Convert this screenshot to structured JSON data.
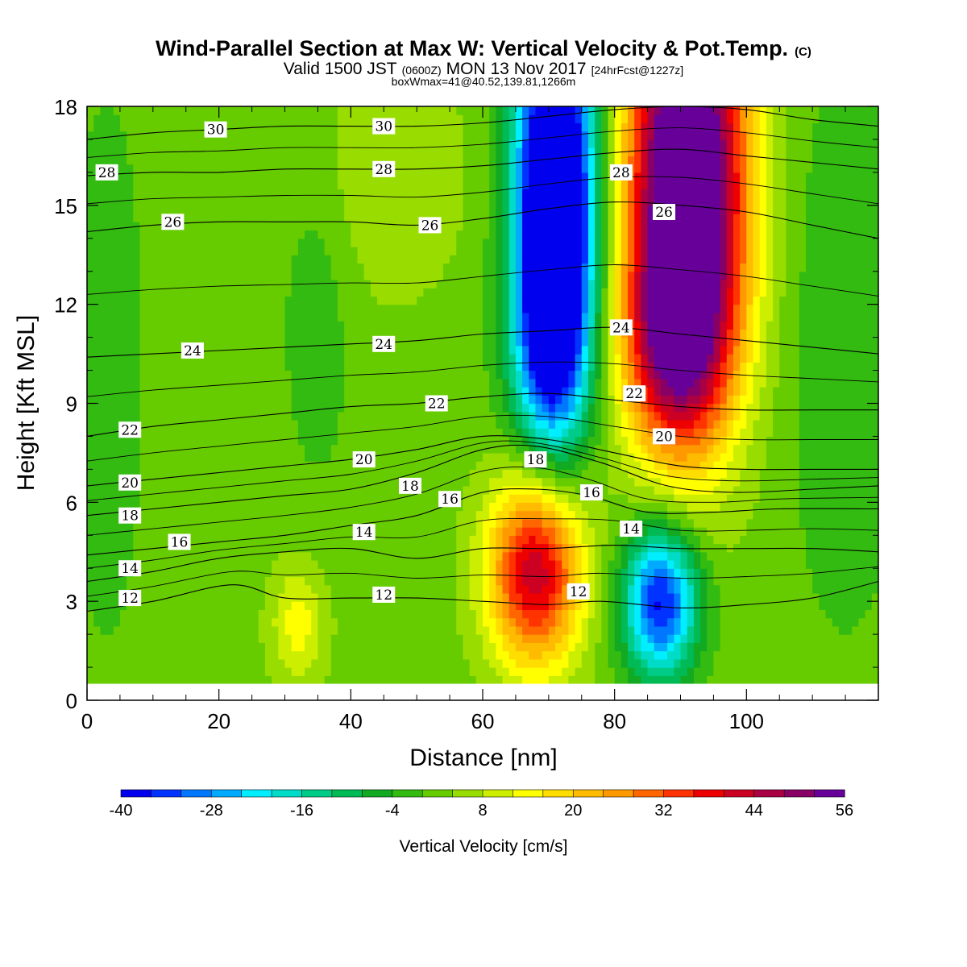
{
  "header": {
    "title": "Wind-Parallel Section at Max W: Vertical Velocity & Pot.Temp.",
    "title_mark": "(C)",
    "valid_prefix": "Valid 1500 JST",
    "valid_utc": "(0600Z)",
    "valid_date": "MON 13 Nov 2017",
    "forecast": "[24hrFcst@1227z]",
    "box_info": "boxWmax=41@40.52,139.81,1266m"
  },
  "chart_data": {
    "type": "heatmap",
    "xlabel": "Distance [nm]",
    "ylabel": "Height [Kft MSL]",
    "xlim": [
      0,
      120
    ],
    "ylim": [
      0,
      18
    ],
    "x_ticks": [
      0,
      20,
      40,
      60,
      80,
      100
    ],
    "y_ticks": [
      0,
      3,
      6,
      9,
      12,
      15,
      18
    ],
    "colorbar": {
      "label": "Vertical Velocity [cm/s]",
      "min": -40,
      "max": 60,
      "step": 4,
      "ticks": [
        -40,
        -28,
        -16,
        -4,
        8,
        20,
        32,
        44,
        56
      ],
      "colors": [
        "#0000ee",
        "#0033ff",
        "#0077ff",
        "#00aaff",
        "#00eeff",
        "#00dcc8",
        "#00cc88",
        "#00bb55",
        "#11aa22",
        "#33bb11",
        "#66cc00",
        "#99dd00",
        "#ccee00",
        "#ffff00",
        "#ffdd00",
        "#ffbb00",
        "#ff9900",
        "#ff6600",
        "#ff3300",
        "#ee0000",
        "#cc0022",
        "#aa0044",
        "#880066",
        "#660099"
      ]
    },
    "w_features": [
      {
        "name": "updraft-upper",
        "x": 91,
        "y": 15.8,
        "sx": 6.2,
        "sy": 4.8,
        "peak": 70
      },
      {
        "name": "updraft-upper-stem",
        "x": 89,
        "y": 10.8,
        "sx": 5.5,
        "sy": 2.2,
        "peak": 28
      },
      {
        "name": "downdraft-upper",
        "x": 71,
        "y": 15.0,
        "sx": 4.2,
        "sy": 4.2,
        "peak": -68
      },
      {
        "name": "downdraft-upper-stem",
        "x": 70,
        "y": 10.5,
        "sx": 3.8,
        "sy": 2.0,
        "peak": -18
      },
      {
        "name": "updraft-lower",
        "x": 68,
        "y": 3.9,
        "sx": 5.0,
        "sy": 2.0,
        "peak": 42
      },
      {
        "name": "downdraft-lower",
        "x": 87,
        "y": 3.0,
        "sx": 4.0,
        "sy": 1.6,
        "peak": -40
      },
      {
        "name": "updraft-low-left",
        "x": 32,
        "y": 2.3,
        "sx": 3.0,
        "sy": 1.3,
        "peak": 12
      },
      {
        "name": "updraft-upper-left",
        "x": 45,
        "y": 16.0,
        "sx": 9.0,
        "sy": 2.8,
        "peak": 6
      },
      {
        "name": "updraft-mid-left",
        "x": 35,
        "y": 12.5,
        "sx": 4.0,
        "sy": 4.0,
        "peak": -5
      },
      {
        "name": "weak-sink-right",
        "x": 115,
        "y": 11.0,
        "sx": 6.0,
        "sy": 6.0,
        "peak": -6
      },
      {
        "name": "weak-sink-left",
        "x": 3,
        "y": 10.0,
        "sx": 4.0,
        "sy": 6.0,
        "peak": -5
      }
    ],
    "background_w": 2,
    "theta_contours": [
      {
        "level": 12,
        "points": [
          [
            0,
            2.7
          ],
          [
            10,
            3.0
          ],
          [
            22,
            3.5
          ],
          [
            30,
            3.1
          ],
          [
            40,
            3.1
          ],
          [
            50,
            3.1
          ],
          [
            60,
            3.0
          ],
          [
            70,
            2.9
          ],
          [
            78,
            3.0
          ],
          [
            90,
            2.8
          ],
          [
            100,
            2.9
          ],
          [
            110,
            3.1
          ],
          [
            120,
            3.6
          ]
        ]
      },
      {
        "level": 14,
        "points": [
          [
            0,
            3.6
          ],
          [
            10,
            3.9
          ],
          [
            20,
            4.3
          ],
          [
            30,
            4.5
          ],
          [
            40,
            4.6
          ],
          [
            50,
            4.3
          ],
          [
            60,
            4.6
          ],
          [
            70,
            4.6
          ],
          [
            80,
            4.7
          ],
          [
            90,
            4.6
          ],
          [
            100,
            4.6
          ],
          [
            110,
            4.6
          ],
          [
            120,
            4.5
          ]
        ]
      },
      {
        "level": 16,
        "points": [
          [
            0,
            4.4
          ],
          [
            10,
            4.6
          ],
          [
            20,
            4.8
          ],
          [
            30,
            5.0
          ],
          [
            40,
            5.3
          ],
          [
            50,
            5.6
          ],
          [
            60,
            6.3
          ],
          [
            68,
            6.4
          ],
          [
            76,
            6.2
          ],
          [
            85,
            5.7
          ],
          [
            95,
            5.7
          ],
          [
            105,
            5.8
          ],
          [
            120,
            5.8
          ]
        ]
      },
      {
        "level": 18,
        "points": [
          [
            0,
            5.6
          ],
          [
            10,
            5.8
          ],
          [
            20,
            6.0
          ],
          [
            30,
            6.2
          ],
          [
            40,
            6.4
          ],
          [
            50,
            6.9
          ],
          [
            60,
            7.6
          ],
          [
            68,
            7.7
          ],
          [
            78,
            7.2
          ],
          [
            88,
            6.5
          ],
          [
            98,
            6.3
          ],
          [
            110,
            6.4
          ],
          [
            120,
            6.5
          ]
        ]
      },
      {
        "level": 20,
        "points": [
          [
            0,
            6.5
          ],
          [
            10,
            6.7
          ],
          [
            20,
            6.9
          ],
          [
            30,
            7.1
          ],
          [
            40,
            7.3
          ],
          [
            50,
            7.6
          ],
          [
            60,
            8.0
          ],
          [
            70,
            7.9
          ],
          [
            80,
            7.5
          ],
          [
            90,
            7.1
          ],
          [
            100,
            7.0
          ],
          [
            110,
            7.0
          ],
          [
            120,
            7.0
          ]
        ]
      },
      {
        "level": 22,
        "points": [
          [
            0,
            8.0
          ],
          [
            10,
            8.3
          ],
          [
            20,
            8.5
          ],
          [
            30,
            8.7
          ],
          [
            40,
            8.9
          ],
          [
            50,
            9.0
          ],
          [
            60,
            9.2
          ],
          [
            70,
            9.3
          ],
          [
            80,
            9.1
          ],
          [
            90,
            8.9
          ],
          [
            100,
            8.8
          ],
          [
            110,
            8.8
          ],
          [
            120,
            8.8
          ]
        ]
      },
      {
        "level": 24,
        "points": [
          [
            0,
            10.4
          ],
          [
            10,
            10.5
          ],
          [
            20,
            10.6
          ],
          [
            30,
            10.7
          ],
          [
            40,
            10.8
          ],
          [
            50,
            10.9
          ],
          [
            60,
            11.1
          ],
          [
            70,
            11.2
          ],
          [
            80,
            11.3
          ],
          [
            90,
            11.1
          ],
          [
            100,
            10.9
          ],
          [
            110,
            10.7
          ],
          [
            120,
            10.5
          ]
        ]
      },
      {
        "level": 26,
        "points": [
          [
            0,
            14.2
          ],
          [
            10,
            14.4
          ],
          [
            20,
            14.5
          ],
          [
            30,
            14.5
          ],
          [
            40,
            14.5
          ],
          [
            50,
            14.4
          ],
          [
            60,
            14.6
          ],
          [
            70,
            14.9
          ],
          [
            80,
            15.1
          ],
          [
            90,
            15.0
          ],
          [
            100,
            14.8
          ],
          [
            110,
            14.4
          ],
          [
            120,
            14.0
          ]
        ]
      },
      {
        "level": 28,
        "points": [
          [
            0,
            15.9
          ],
          [
            10,
            16.0
          ],
          [
            20,
            16.0
          ],
          [
            30,
            16.1
          ],
          [
            40,
            16.1
          ],
          [
            50,
            16.1
          ],
          [
            60,
            16.2
          ],
          [
            70,
            16.4
          ],
          [
            80,
            16.6
          ],
          [
            90,
            16.7
          ],
          [
            100,
            16.5
          ],
          [
            110,
            16.3
          ],
          [
            120,
            16.1
          ]
        ]
      },
      {
        "level": 30,
        "points": [
          [
            0,
            17.0
          ],
          [
            10,
            17.2
          ],
          [
            20,
            17.3
          ],
          [
            30,
            17.4
          ],
          [
            40,
            17.4
          ],
          [
            50,
            17.4
          ],
          [
            60,
            17.5
          ],
          [
            70,
            17.7
          ],
          [
            80,
            17.9
          ],
          [
            90,
            18.0
          ],
          [
            100,
            17.9
          ],
          [
            110,
            17.6
          ],
          [
            120,
            17.4
          ]
        ]
      }
    ],
    "contour_labels": [
      {
        "text": "30",
        "x": 19.5,
        "y": 17.3
      },
      {
        "text": "30",
        "x": 45,
        "y": 17.4
      },
      {
        "text": "28",
        "x": 3,
        "y": 16.0
      },
      {
        "text": "28",
        "x": 45,
        "y": 16.1
      },
      {
        "text": "28",
        "x": 81,
        "y": 16.0
      },
      {
        "text": "26",
        "x": 13,
        "y": 14.5
      },
      {
        "text": "26",
        "x": 52,
        "y": 14.4
      },
      {
        "text": "26",
        "x": 87.5,
        "y": 14.8
      },
      {
        "text": "24",
        "x": 16,
        "y": 10.6
      },
      {
        "text": "24",
        "x": 45,
        "y": 10.8
      },
      {
        "text": "24",
        "x": 81,
        "y": 11.3
      },
      {
        "text": "22",
        "x": 6.5,
        "y": 8.2
      },
      {
        "text": "22",
        "x": 53,
        "y": 9.0
      },
      {
        "text": "22",
        "x": 83,
        "y": 9.3
      },
      {
        "text": "20",
        "x": 6.5,
        "y": 6.6
      },
      {
        "text": "20",
        "x": 42,
        "y": 7.3
      },
      {
        "text": "20",
        "x": 87.5,
        "y": 8.0
      },
      {
        "text": "18",
        "x": 6.5,
        "y": 5.6
      },
      {
        "text": "18",
        "x": 49,
        "y": 6.5
      },
      {
        "text": "18",
        "x": 68,
        "y": 7.3
      },
      {
        "text": "16",
        "x": 14,
        "y": 4.8
      },
      {
        "text": "16",
        "x": 55,
        "y": 6.1
      },
      {
        "text": "16",
        "x": 76.5,
        "y": 6.3
      },
      {
        "text": "14",
        "x": 6.5,
        "y": 4.0
      },
      {
        "text": "14",
        "x": 42,
        "y": 5.1
      },
      {
        "text": "14",
        "x": 82.5,
        "y": 5.2
      },
      {
        "text": "12",
        "x": 6.5,
        "y": 3.1
      },
      {
        "text": "12",
        "x": 45,
        "y": 3.2
      },
      {
        "text": "12",
        "x": 74.5,
        "y": 3.3
      }
    ]
  }
}
